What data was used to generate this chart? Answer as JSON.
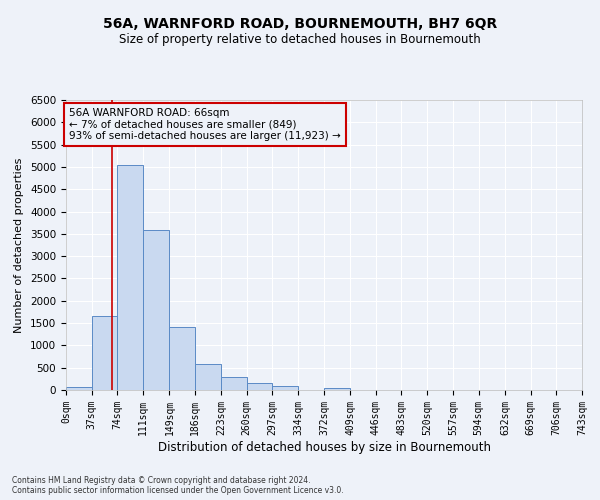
{
  "title": "56A, WARNFORD ROAD, BOURNEMOUTH, BH7 6QR",
  "subtitle": "Size of property relative to detached houses in Bournemouth",
  "xlabel": "Distribution of detached houses by size in Bournemouth",
  "ylabel": "Number of detached properties",
  "footer_line1": "Contains HM Land Registry data © Crown copyright and database right 2024.",
  "footer_line2": "Contains public sector information licensed under the Open Government Licence v3.0.",
  "bar_edges": [
    0,
    37,
    74,
    111,
    149,
    186,
    223,
    260,
    297,
    334,
    372,
    409,
    446,
    483,
    520,
    557,
    594,
    632,
    669,
    706,
    743
  ],
  "bar_heights": [
    65,
    1650,
    5050,
    3580,
    1420,
    580,
    290,
    150,
    100,
    0,
    55,
    0,
    0,
    0,
    0,
    0,
    0,
    0,
    0,
    0
  ],
  "bar_color": "#c9d9f0",
  "bar_edge_color": "#5a8ac6",
  "property_line_x": 66,
  "property_line_color": "#cc0000",
  "annotation_text": "56A WARNFORD ROAD: 66sqm\n← 7% of detached houses are smaller (849)\n93% of semi-detached houses are larger (11,923) →",
  "annotation_box_color": "#cc0000",
  "ylim": [
    0,
    6500
  ],
  "yticks": [
    0,
    500,
    1000,
    1500,
    2000,
    2500,
    3000,
    3500,
    4000,
    4500,
    5000,
    5500,
    6000,
    6500
  ],
  "background_color": "#eef2f9",
  "grid_color": "#ffffff",
  "title_fontsize": 10,
  "subtitle_fontsize": 8.5,
  "xlabel_fontsize": 8.5,
  "ylabel_fontsize": 8,
  "tick_label_fontsize": 7,
  "tick_labels": [
    "0sqm",
    "37sqm",
    "74sqm",
    "111sqm",
    "149sqm",
    "186sqm",
    "223sqm",
    "260sqm",
    "297sqm",
    "334sqm",
    "372sqm",
    "409sqm",
    "446sqm",
    "483sqm",
    "520sqm",
    "557sqm",
    "594sqm",
    "632sqm",
    "669sqm",
    "706sqm",
    "743sqm"
  ],
  "footer_fontsize": 5.5
}
